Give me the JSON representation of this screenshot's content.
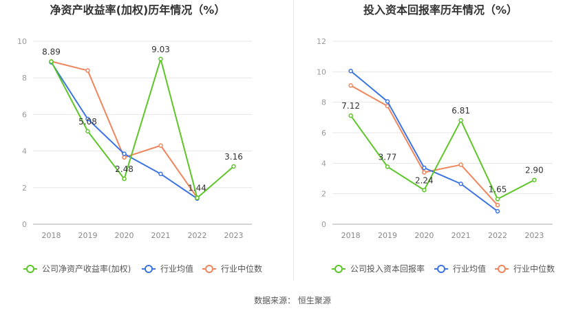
{
  "colors": {
    "company": "#5cc527",
    "avg": "#3b74e2",
    "median": "#f0845b"
  },
  "source": "数据来源：  恒生聚源",
  "chart_data": [
    {
      "type": "line",
      "title": "净资产收益率(加权)历年情况（%）",
      "categories": [
        "2018",
        "2019",
        "2020",
        "2021",
        "2022",
        "2023"
      ],
      "ylim": [
        0,
        10
      ],
      "yticks": [
        0,
        2,
        4,
        6,
        8,
        10
      ],
      "grid": true,
      "legend": "bottom",
      "series": [
        {
          "name": "公司净资产收益率(加权)",
          "key": "company",
          "values": [
            8.89,
            5.08,
            2.48,
            9.03,
            1.44,
            3.16
          ],
          "labels": [
            "8.89",
            "5.08",
            "2.48",
            "9.03",
            "1.44",
            "3.16"
          ]
        },
        {
          "name": "行业均值",
          "key": "avg",
          "values": [
            8.85,
            5.75,
            3.85,
            2.75,
            1.4,
            null
          ]
        },
        {
          "name": "行业中位数",
          "key": "median",
          "values": [
            8.9,
            8.4,
            3.65,
            4.3,
            1.45,
            null
          ]
        }
      ]
    },
    {
      "type": "line",
      "title": "投入资本回报率历年情况（%）",
      "categories": [
        "2018",
        "2019",
        "2020",
        "2021",
        "2022",
        "2023"
      ],
      "ylim": [
        0,
        12
      ],
      "yticks": [
        0,
        2,
        4,
        6,
        8,
        10,
        12
      ],
      "grid": true,
      "legend": "bottom",
      "series": [
        {
          "name": "公司投入资本回报率",
          "key": "company",
          "values": [
            7.12,
            3.77,
            2.24,
            6.81,
            1.65,
            2.9
          ],
          "labels": [
            "7.12",
            "3.77",
            "2.24",
            "6.81",
            "1.65",
            "2.90"
          ]
        },
        {
          "name": "行业均值",
          "key": "avg",
          "values": [
            10.05,
            8.05,
            3.7,
            2.65,
            0.85,
            null
          ]
        },
        {
          "name": "行业中位数",
          "key": "median",
          "values": [
            9.1,
            7.75,
            3.4,
            3.9,
            1.25,
            null
          ]
        }
      ]
    }
  ]
}
